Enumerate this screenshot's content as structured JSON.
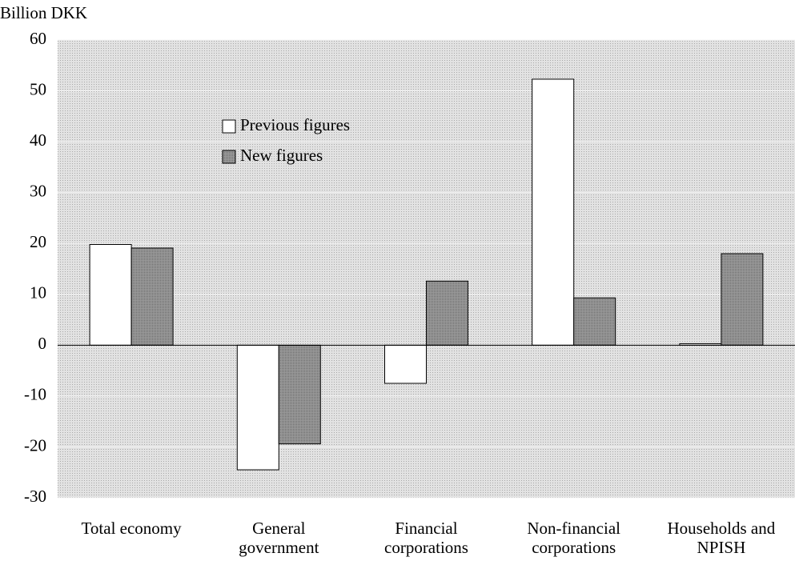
{
  "chart_data": {
    "type": "bar",
    "y_label": "Billion DKK",
    "categories": [
      "Total economy",
      "General government",
      "Financial corporations",
      "Non-financial corporations",
      "Households and NPISH"
    ],
    "series": [
      {
        "name": "Previous figures",
        "color": "#ffffff",
        "values": [
          19.8,
          -24.5,
          -7.5,
          52.3,
          0.3
        ]
      },
      {
        "name": "New figures",
        "color": "#8c8c8c",
        "values": [
          19.1,
          -19.4,
          12.6,
          9.3,
          18.0
        ]
      }
    ],
    "ylim": [
      -30,
      60
    ],
    "yticks": [
      -30,
      -20,
      -10,
      0,
      10,
      20,
      30,
      40,
      50,
      60
    ],
    "grid": true
  }
}
